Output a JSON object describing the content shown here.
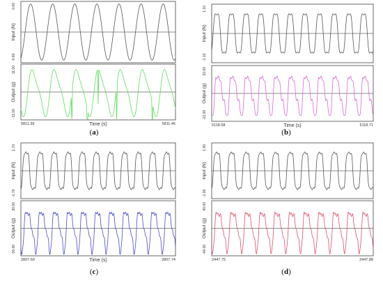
{
  "chart_data": [
    {
      "type": "line",
      "panel": "a",
      "panel_label": "(a)",
      "subplots": [
        {
          "ylabel": "Input (N)",
          "ytick_top": "0.60",
          "ytick_bottom": "-0.60",
          "ylim": [
            -0.6,
            0.6
          ],
          "color": "#555555",
          "series": {
            "periods": 7,
            "amplitude": 0.55,
            "phase": -1.2,
            "harmonics": []
          }
        },
        {
          "ylabel": "Output (g)",
          "ytick_top": "11.00",
          "ytick_bottom": "-11.00",
          "ylim": [
            -11,
            11
          ],
          "color": "#5ddc5d",
          "series": {
            "periods": 7,
            "amplitude": 8.5,
            "phase": -2.0,
            "harmonics": [
              [
                2,
                0.25,
                0.3
              ]
            ],
            "spikes": [
              0.33,
              0.43,
              0.5,
              0.62,
              0.85
            ]
          }
        }
      ],
      "xtick_left": "5811.39",
      "xtick_right": "5811.46",
      "xlabel": "Time (s)",
      "xlabel_visible": true
    },
    {
      "type": "line",
      "panel": "b",
      "panel_label": "(b)",
      "subplots": [
        {
          "ylabel": "Input (N)",
          "ytick_top": "1.10",
          "ytick_bottom": "-1.10",
          "ylim": [
            -1.1,
            1.1
          ],
          "color": "#555555",
          "series": {
            "periods": 11,
            "amplitude": 0.85,
            "phase": -0.6,
            "harmonics": [
              [
                3,
                0.18,
                0.0
              ]
            ]
          }
        },
        {
          "ylabel": "Output (g)",
          "ytick_top": "22.00",
          "ytick_bottom": "-22.00",
          "ylim": [
            -22,
            22
          ],
          "color": "#dd66dd",
          "series": {
            "periods": 11,
            "amplitude": 15,
            "phase": -1.4,
            "harmonics": [
              [
                2,
                0.25,
                0.4
              ],
              [
                3,
                0.2,
                1.0
              ],
              [
                5,
                0.12,
                0.7
              ]
            ]
          }
        }
      ],
      "xtick_left": "5118.58",
      "xtick_right": "5118.71",
      "xlabel": "Time (s)",
      "xlabel_visible": true
    },
    {
      "type": "line",
      "panel": "c",
      "panel_label": "(c)",
      "subplots": [
        {
          "ylabel": "Input (N)",
          "ytick_top": "1.70",
          "ytick_bottom": "-1.70",
          "ylim": [
            -1.7,
            1.7
          ],
          "color": "#555555",
          "series": {
            "periods": 11,
            "amplitude": 1.3,
            "phase": -0.8,
            "harmonics": [
              [
                3,
                0.2,
                0.0
              ],
              [
                5,
                0.08,
                0.5
              ]
            ]
          }
        },
        {
          "ylabel": "Output (g)",
          "ytick_top": "30.00",
          "ytick_bottom": "-30.00",
          "ylim": [
            -30,
            30
          ],
          "color": "#4a4ad0",
          "series": {
            "periods": 11,
            "amplitude": 20,
            "phase": -1.6,
            "harmonics": [
              [
                2,
                0.3,
                0.5
              ],
              [
                3,
                0.22,
                1.2
              ],
              [
                6,
                0.1,
                0.3
              ]
            ]
          }
        }
      ],
      "xtick_left": "2807.60",
      "xtick_right": "2807.74",
      "xlabel": "Time (s)",
      "xlabel_visible": true
    },
    {
      "type": "line",
      "panel": "d",
      "panel_label": "(d)",
      "subplots": [
        {
          "ylabel": "Input (N)",
          "ytick_top": "1.90",
          "ytick_bottom": "-1.90",
          "ylim": [
            -1.9,
            1.9
          ],
          "color": "#555555",
          "series": {
            "periods": 11,
            "amplitude": 1.45,
            "phase": -0.7,
            "harmonics": [
              [
                3,
                0.2,
                0.0
              ],
              [
                5,
                0.08,
                0.4
              ]
            ]
          }
        },
        {
          "ylabel": "Output (g)",
          "ytick_top": "40.00",
          "ytick_bottom": "-40.00",
          "ylim": [
            -40,
            40
          ],
          "color": "#e0506a",
          "series": {
            "periods": 11,
            "amplitude": 26,
            "phase": -1.5,
            "harmonics": [
              [
                2,
                0.3,
                0.6
              ],
              [
                3,
                0.22,
                1.1
              ],
              [
                6,
                0.1,
                0.2
              ]
            ]
          }
        }
      ],
      "xtick_left": "2447.75",
      "xtick_right": "2447.88",
      "xlabel": "Time (s)",
      "xlabel_visible": false
    }
  ]
}
